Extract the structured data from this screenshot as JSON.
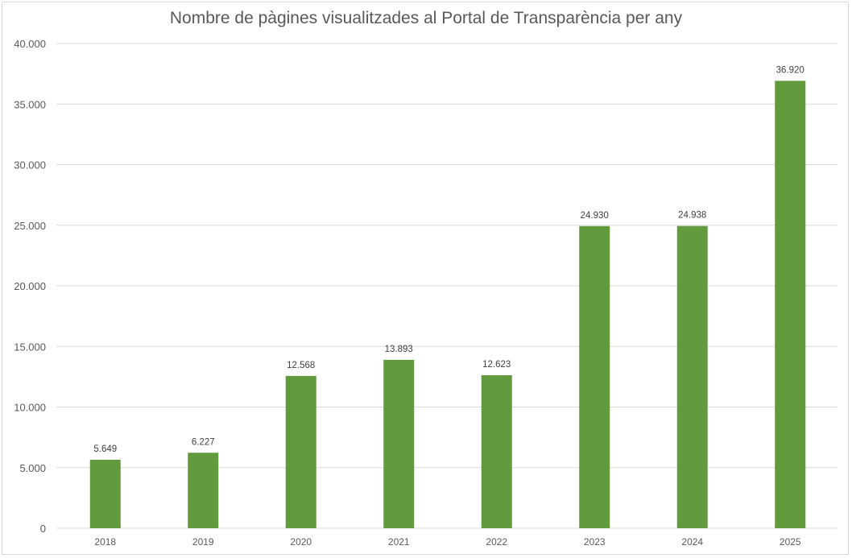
{
  "chart_data": {
    "type": "bar",
    "title": "Nombre de pàgines visualitzades al Portal de Transparència per any",
    "xlabel": "",
    "ylabel": "",
    "categories": [
      "2018",
      "2019",
      "2020",
      "2021",
      "2022",
      "2023",
      "2024",
      "2025"
    ],
    "values": [
      5649,
      6227,
      12568,
      13893,
      12623,
      24930,
      24938,
      36920
    ],
    "data_labels": [
      "5.649",
      "6.227",
      "12.568",
      "13.893",
      "12.623",
      "24.930",
      "24.938",
      "36.920"
    ],
    "ylim": [
      0,
      40000
    ],
    "yticks": [
      0,
      5000,
      10000,
      15000,
      20000,
      25000,
      30000,
      35000,
      40000
    ],
    "ytick_labels": [
      "0",
      "5.000",
      "10.000",
      "15.000",
      "20.000",
      "25.000",
      "30.000",
      "35.000",
      "40.000"
    ],
    "grid": true,
    "legend": "none",
    "bar_color": "#629a3e",
    "grid_color": "#d9d9d9"
  }
}
